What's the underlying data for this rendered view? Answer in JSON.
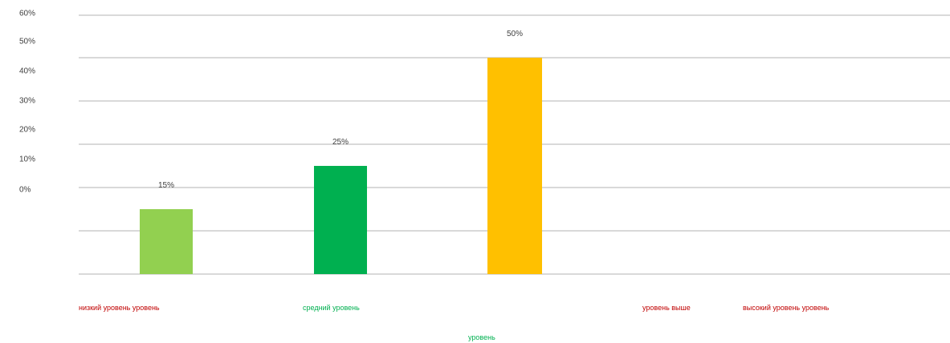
{
  "chart_data": {
    "type": "bar",
    "title": "",
    "xlabel": "",
    "ylabel": "",
    "y_tick_labels": [
      "0%",
      "10%",
      "20%",
      "30%",
      "40%",
      "50%",
      "60%"
    ],
    "categories": [
      "низкий уровень",
      "средний уровень",
      "уровень",
      "уровень выше",
      "высокий уровень"
    ],
    "values": [
      15,
      25,
      50,
      null,
      null
    ],
    "data_labels": [
      "15%",
      "25%",
      "50%",
      "",
      ""
    ],
    "colors": [
      "#92d050",
      "#00b050",
      "#ffc000",
      "#ffffff",
      "#ffffff"
    ],
    "axis_label_lines": [
      {
        "text": "низкий уровень уровень",
        "color": "#c00000"
      },
      {
        "text": "средний уровень",
        "color": "#00b050"
      },
      {
        "text": "уровень",
        "color": "#00b050"
      },
      {
        "text": "уровень выше",
        "color": "#c00000"
      },
      {
        "text": "высокий уровень уровень",
        "color": "#c00000"
      }
    ],
    "grid": true,
    "legend": "none"
  }
}
